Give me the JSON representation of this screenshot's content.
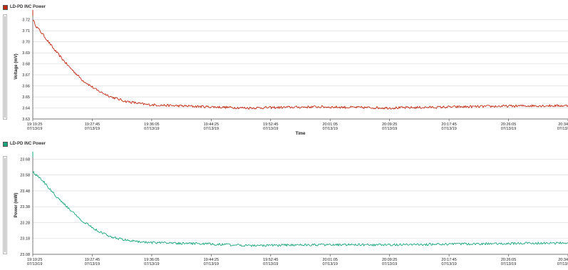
{
  "chart_data": [
    {
      "type": "line",
      "legend": "LD-PD INC Power",
      "ylabel": "Voltage (mV)",
      "xlabel": "Time",
      "color": "#c0280f",
      "ylim": [
        3.63,
        3.725
      ],
      "yticks": [
        "3.72",
        "3.71",
        "3.70",
        "3.69",
        "3.68",
        "3.67",
        "3.66",
        "3.65",
        "3.64",
        "3.63"
      ],
      "x_tick_times": [
        "19:19:25",
        "19:27:45",
        "19:36:05",
        "19:44:25",
        "19:52:45",
        "20:01:05",
        "20:09:25",
        "20:17:45",
        "20:26:05",
        "20:34"
      ],
      "x_tick_dates": [
        "07/13/19",
        "07/13/19",
        "07/13/19",
        "07/13/19",
        "07/13/19",
        "07/13/19",
        "07/13/19",
        "07/13/19",
        "07/13/19",
        "07/13/"
      ],
      "series": [
        {
          "x_minutes": [
            0,
            0.5,
            1.5,
            3,
            5,
            7,
            9,
            11,
            13,
            16,
            20,
            25,
            30,
            40,
            50,
            60,
            70,
            80,
            90,
            100,
            110,
            120,
            130,
            140,
            150
          ],
          "values": [
            3.72,
            3.714,
            3.706,
            3.693,
            3.678,
            3.665,
            3.656,
            3.65,
            3.646,
            3.643,
            3.642,
            3.641,
            3.64,
            3.641,
            3.64,
            3.641,
            3.642,
            3.642,
            3.645,
            3.646,
            3.645,
            3.644,
            3.645,
            3.646,
            3.646
          ]
        }
      ]
    },
    {
      "type": "line",
      "legend": "LD-PD INC Power",
      "ylabel": "Power (mW)",
      "xlabel": "",
      "color": "#1aa57c",
      "ylim": [
        23.08,
        23.7
      ],
      "yticks": [
        "23.68",
        "23.58",
        "23.48",
        "23.38",
        "23.28",
        "23.18",
        "23.08"
      ],
      "x_tick_times": [
        "19:19:25",
        "19:27:45",
        "19:36:05",
        "19:44:25",
        "19:52:45",
        "20:01:05",
        "20:09:25",
        "20:17:45",
        "20:26:05",
        "20:34"
      ],
      "x_tick_dates": [
        "07/13/19",
        "07/13/19",
        "07/13/19",
        "07/13/19",
        "07/13/19",
        "07/13/19",
        "07/13/19",
        "07/13/19",
        "07/13/19",
        "07/13/"
      ],
      "series": [
        {
          "x_minutes": [
            0,
            0.5,
            1.5,
            3,
            5,
            7,
            9,
            11,
            13,
            16,
            20,
            25,
            30,
            40,
            50,
            60,
            70,
            80,
            90,
            100,
            110,
            120,
            130,
            140,
            150
          ],
          "values": [
            23.6,
            23.58,
            23.54,
            23.46,
            23.37,
            23.29,
            23.23,
            23.19,
            23.17,
            23.155,
            23.15,
            23.145,
            23.135,
            23.14,
            23.14,
            23.145,
            23.15,
            23.155,
            23.165,
            23.17,
            23.17,
            23.165,
            23.17,
            23.175,
            23.175
          ]
        }
      ]
    }
  ]
}
